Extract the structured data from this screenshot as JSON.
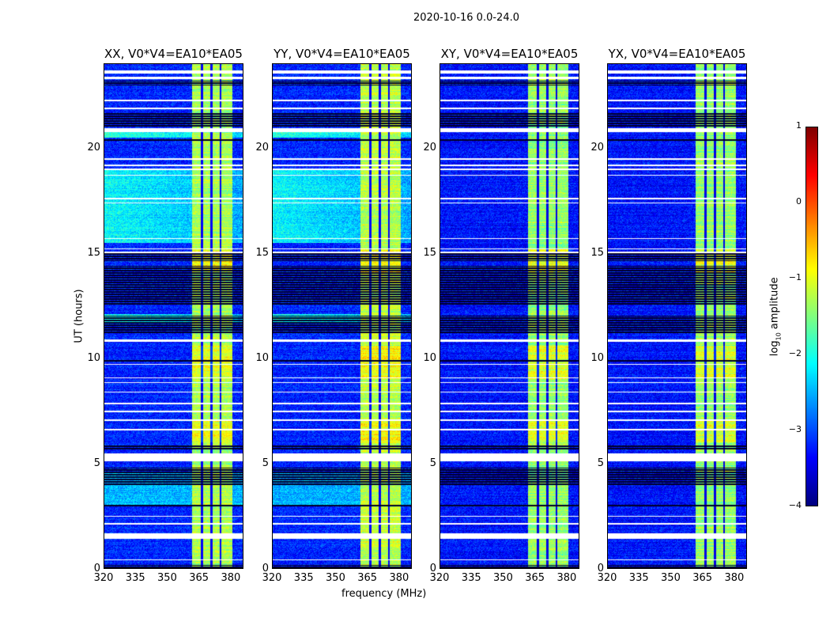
{
  "chart_data": {
    "type": "heatmap",
    "title": "2020-10-16 0.0-24.0",
    "xlabel": "frequency (MHz)",
    "ylabel": "UT (hours)",
    "xlim": [
      320,
      386
    ],
    "ylim": [
      0,
      24
    ],
    "xticks": [
      "320",
      "335",
      "350",
      "365",
      "380"
    ],
    "xtick_values": [
      320,
      335,
      350,
      365,
      380
    ],
    "yticks": [
      "0",
      "5",
      "10",
      "15",
      "20"
    ],
    "ytick_values": [
      0,
      5,
      10,
      15,
      20
    ],
    "colormap": "jet",
    "colorbar": {
      "label": "log10 amplitude",
      "label_main": "log",
      "label_sub": "10",
      "label_rest": " amplitude",
      "range": [
        -4,
        1
      ],
      "ticks": [
        "1",
        "0",
        "−1",
        "−2",
        "−3",
        "−4"
      ],
      "tick_values": [
        1,
        0,
        -1,
        -2,
        -3,
        -4
      ]
    },
    "rfi_band_mhz": [
      362,
      381
    ],
    "band_dividers_mhz": [
      366.5,
      371,
      375.5
    ],
    "white_gaps_ut": [
      [
        23.55,
        23.68
      ],
      [
        23.3,
        23.4
      ],
      [
        22.22,
        22.3
      ],
      [
        21.85,
        21.93
      ],
      [
        20.75,
        20.95
      ],
      [
        19.45,
        19.52
      ],
      [
        19.15,
        19.22
      ],
      [
        18.97,
        19.03
      ],
      [
        18.67,
        18.72
      ],
      [
        17.57,
        17.62
      ],
      [
        17.37,
        17.42
      ],
      [
        15.67,
        15.72
      ],
      [
        15.17,
        15.23
      ],
      [
        14.99,
        15.06
      ],
      [
        10.78,
        10.88
      ],
      [
        9.67,
        9.73
      ],
      [
        9.04,
        9.09
      ],
      [
        8.82,
        8.87
      ],
      [
        8.37,
        8.42
      ],
      [
        7.81,
        7.86
      ],
      [
        7.43,
        7.48
      ],
      [
        7.02,
        7.07
      ],
      [
        6.57,
        6.62
      ],
      [
        5.1,
        5.45
      ],
      [
        2.44,
        2.5
      ],
      [
        2.07,
        2.13
      ],
      [
        1.4,
        1.65
      ],
      [
        0.38,
        0.43
      ]
    ],
    "dead_rows_ut": [
      [
        23.0,
        23.2
      ],
      [
        21.0,
        21.7
      ],
      [
        20.3,
        20.45
      ],
      [
        14.6,
        15.0
      ],
      [
        12.5,
        14.4
      ],
      [
        11.2,
        12.0
      ],
      [
        9.85,
        9.95
      ],
      [
        5.6,
        5.85
      ],
      [
        3.9,
        4.8
      ],
      [
        2.95,
        3.05
      ],
      [
        0.0,
        0.15
      ]
    ],
    "panels": [
      {
        "title": "XX, V0*V4=EA10*EA05",
        "background": -3.2,
        "band_level": -1.3,
        "elevated": [
          [
            15.5,
            19.0,
            -2.1
          ],
          [
            20.5,
            20.95,
            -1.9
          ],
          [
            3.0,
            4.6,
            -2.5
          ],
          [
            11.7,
            12.1,
            -2.0
          ]
        ]
      },
      {
        "title": "YY, V0*V4=EA10*EA05",
        "background": -3.2,
        "band_level": -1.2,
        "elevated": [
          [
            15.5,
            19.0,
            -2.1
          ],
          [
            20.5,
            20.95,
            -1.9
          ],
          [
            3.0,
            4.6,
            -2.5
          ],
          [
            11.7,
            12.1,
            -2.0
          ]
        ]
      },
      {
        "title": "XY, V0*V4=EA10*EA05",
        "background": -3.3,
        "band_level": -1.4,
        "elevated": []
      },
      {
        "title": "YX, V0*V4=EA10*EA05",
        "background": -3.3,
        "band_level": -1.4,
        "elevated": []
      }
    ]
  }
}
